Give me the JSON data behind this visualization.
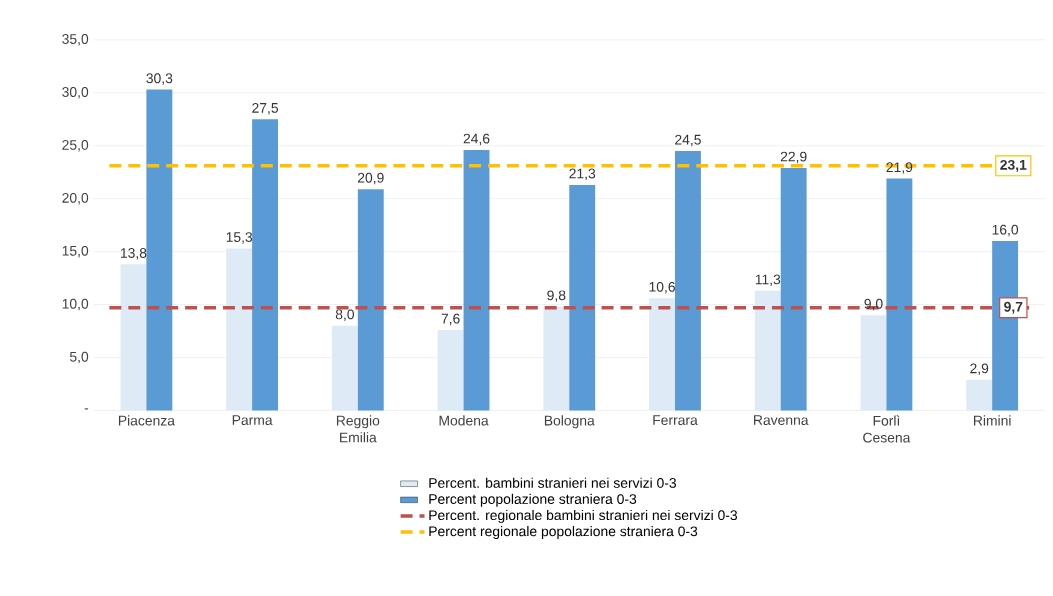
{
  "chart_data": {
    "type": "bar",
    "categories": [
      "Piacenza",
      "Parma",
      "Reggio Emilia",
      "Modena",
      "Bologna",
      "Ferrara",
      "Ravenna",
      "Forlì Cesena",
      "Rimini"
    ],
    "series": [
      {
        "name": "Percent. bambini stranieri nei servizi 0-3",
        "color": "#deebf7",
        "values": [
          13.8,
          15.3,
          8.0,
          7.6,
          9.8,
          10.6,
          11.3,
          9.0,
          2.9
        ],
        "value_labels": [
          "13,8",
          "15,3",
          "8,0",
          "7,6",
          "9,8",
          "10,6",
          "11,3",
          "9,0",
          "2,9"
        ]
      },
      {
        "name": "Percent popolazione straniera 0-3",
        "color": "#5b9bd5",
        "values": [
          30.3,
          27.5,
          20.9,
          24.6,
          21.3,
          24.5,
          22.9,
          21.9,
          16.0
        ],
        "value_labels": [
          "30,3",
          "27,5",
          "20,9",
          "24,6",
          "21,3",
          "24,5",
          "22,9",
          "21,9",
          "16,0"
        ]
      }
    ],
    "ref_lines": [
      {
        "axis": "y",
        "value": 9.7,
        "label": "Percent. regionale bambini stranieri nei servizi 0-3",
        "color": "#c0504d",
        "line_style": "dashed"
      },
      {
        "axis": "y",
        "value": 23.1,
        "label": "Percent regionale popolazione straniera 0-3",
        "color": "#ffc000",
        "line_style": "dashed"
      }
    ],
    "annotations": [
      {
        "text": "9,7",
        "x": "Rimini",
        "y": 9.7
      },
      {
        "text": "23,1",
        "x": "Rimini",
        "y": 23.1
      }
    ],
    "ylim": [
      0,
      35
    ],
    "yticks": [
      {
        "value": 0,
        "label": "-"
      },
      {
        "value": 5,
        "label": "5,0"
      },
      {
        "value": 10,
        "label": "10,0"
      },
      {
        "value": 15,
        "label": "15,0"
      },
      {
        "value": 20,
        "label": "20,0"
      },
      {
        "value": 25,
        "label": "25,0"
      },
      {
        "value": 30,
        "label": "30,0"
      },
      {
        "value": 35,
        "label": "35,0"
      }
    ],
    "grid": "y",
    "legend": "bottom"
  }
}
